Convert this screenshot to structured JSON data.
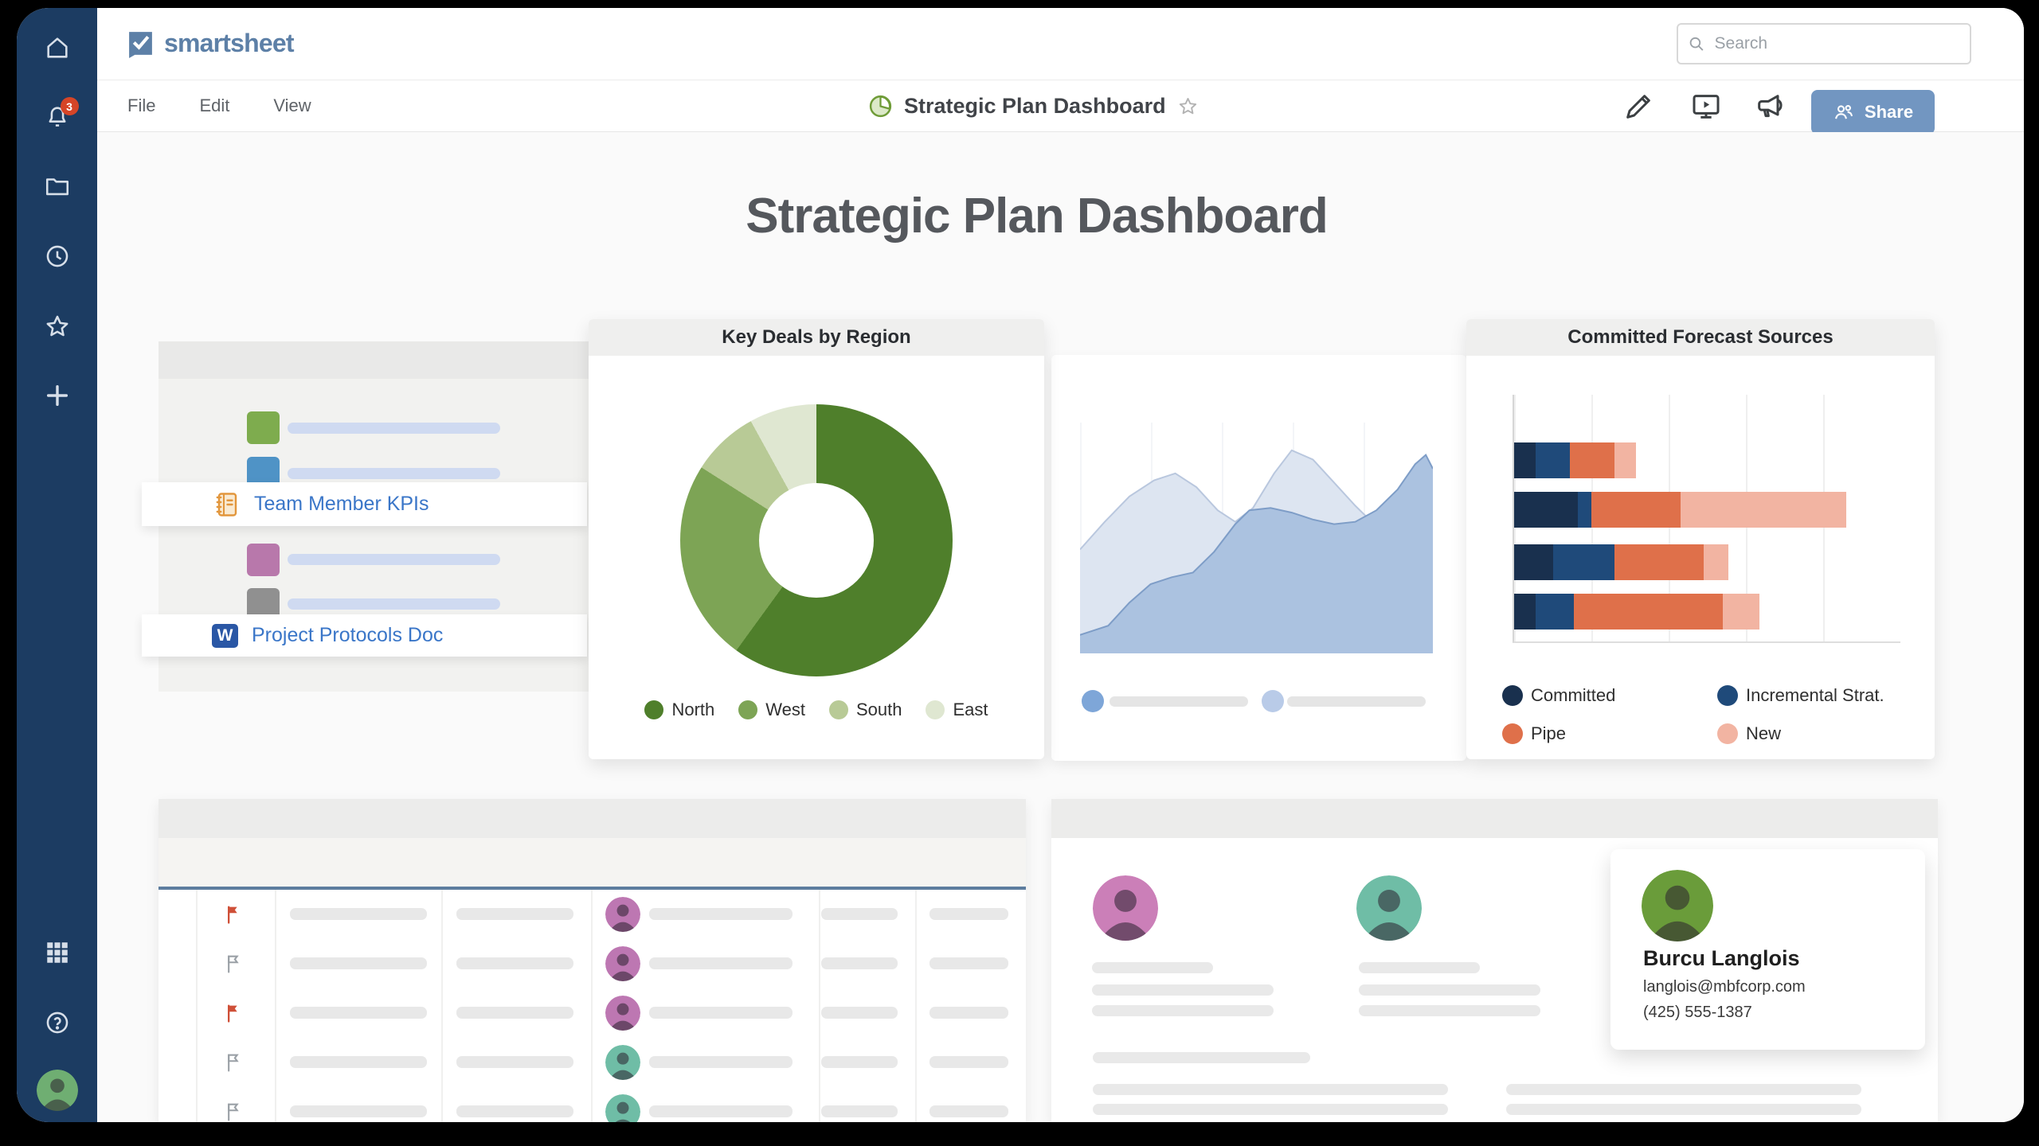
{
  "topbar": {
    "logo_text": "smartsheet",
    "search_placeholder": "Search"
  },
  "sidebar": {
    "notification_count": "3",
    "icons": [
      "home",
      "notifications",
      "folders",
      "recents",
      "favorites",
      "create",
      "apps",
      "help",
      "account"
    ]
  },
  "menubar": {
    "menus": [
      "File",
      "Edit",
      "View"
    ],
    "doc_title": "Strategic Plan Dashboard",
    "share_label": "Share",
    "action_icons": [
      "edit-pencil",
      "present",
      "announce"
    ]
  },
  "main": {
    "heading": "Strategic Plan Dashboard"
  },
  "left_list": {
    "skeleton_items": [
      {
        "swatch": "#7eac4e"
      },
      {
        "swatch": "#4f93c6"
      },
      {
        "swatch": "#b878ab"
      },
      {
        "swatch": "#909090"
      }
    ],
    "links": [
      {
        "label": "Team Member KPIs",
        "icon": "notebook-icon"
      },
      {
        "label": "Project Protocols Doc",
        "icon": "word-doc-icon"
      }
    ]
  },
  "chart_data": [
    {
      "id": "key-deals-by-region",
      "type": "pie",
      "donut": true,
      "title": "Key Deals by Region",
      "labels": [
        "North",
        "West",
        "South",
        "East"
      ],
      "values": [
        60,
        24,
        8,
        8
      ],
      "colors": [
        "#4f7f2b",
        "#7da455",
        "#b8ca96",
        "#dfe7d1"
      ],
      "legend_position": "bottom"
    },
    {
      "id": "trend-area",
      "type": "area",
      "title": "",
      "xlim": [
        0,
        100
      ],
      "ylim": [
        0,
        100
      ],
      "grid": "faint-vertical",
      "series": [
        {
          "name": "background-series",
          "fill": "#dde5f1",
          "stroke": "#b9c7de",
          "points": [
            [
              0,
              45
            ],
            [
              7,
              57
            ],
            [
              14,
              68
            ],
            [
              21,
              75
            ],
            [
              27,
              78
            ],
            [
              33,
              72
            ],
            [
              39,
              62
            ],
            [
              44,
              57
            ],
            [
              49,
              63
            ],
            [
              55,
              78
            ],
            [
              60,
              88
            ],
            [
              66,
              84
            ],
            [
              72,
              74
            ],
            [
              78,
              64
            ],
            [
              84,
              55
            ],
            [
              90,
              50
            ],
            [
              95,
              44
            ],
            [
              100,
              38
            ]
          ]
        },
        {
          "name": "foreground-series",
          "fill": "#abc2e0",
          "stroke": "#7e9dc7",
          "points": [
            [
              0,
              8
            ],
            [
              8,
              12
            ],
            [
              14,
              22
            ],
            [
              20,
              30
            ],
            [
              26,
              33
            ],
            [
              32,
              35
            ],
            [
              38,
              44
            ],
            [
              44,
              56
            ],
            [
              48,
              62
            ],
            [
              54,
              63
            ],
            [
              60,
              61
            ],
            [
              66,
              58
            ],
            [
              72,
              56
            ],
            [
              78,
              57
            ],
            [
              84,
              62
            ],
            [
              90,
              71
            ],
            [
              95,
              82
            ],
            [
              98,
              86
            ],
            [
              100,
              80
            ]
          ]
        }
      ]
    },
    {
      "id": "committed-forecast-sources",
      "type": "bar",
      "orientation": "horizontal",
      "stacked": true,
      "title": "Committed Forecast Sources",
      "categories": [
        "",
        "",
        "",
        ""
      ],
      "xlim": [
        0,
        100
      ],
      "legend_position": "bottom",
      "series": [
        {
          "name": "Committed",
          "color": "#19304e",
          "values": [
            5.5,
            16.5,
            10,
            5.5
          ]
        },
        {
          "name": "Incremental Strat.",
          "color": "#1f4a7a",
          "values": [
            9,
            3.5,
            16,
            10
          ]
        },
        {
          "name": "Pipe",
          "color": "#df704a",
          "values": [
            11.5,
            23,
            23,
            38.5
          ]
        },
        {
          "name": "New",
          "color": "#f2b4a2",
          "values": [
            5.5,
            43,
            6.5,
            9.5
          ]
        }
      ]
    }
  ],
  "kpi_table": {
    "rows": [
      {
        "flag": "red",
        "avatar": "purple"
      },
      {
        "flag": "gray",
        "avatar": "purple"
      },
      {
        "flag": "red",
        "avatar": "purple"
      },
      {
        "flag": "gray",
        "avatar": "teal"
      },
      {
        "flag": "gray",
        "avatar": "teal"
      }
    ]
  },
  "profiles": {
    "avatars": [
      {
        "color": "pink"
      },
      {
        "color": "teal"
      }
    ]
  },
  "contact_card": {
    "name": "Burcu Langlois",
    "email": "langlois@mbfcorp.com",
    "phone": "(425) 555-1387"
  },
  "colors": {
    "sidebar": "#1c3c62",
    "accent_share": "#7296c1",
    "logo": "#5d80a7",
    "link_blue": "#3a76c8",
    "flag_red": "#cf5038",
    "flag_gray": "#9aa0a6",
    "avatar_purple": "#bd77b2",
    "avatar_teal": "#6fbda6",
    "avatar_pink": "#cb7fb8",
    "avatar_green": "#6a9c3a",
    "slider_dot1": "#7ea6d8",
    "slider_dot2": "#b9cbe8",
    "table_blue_line": "#5d7d9f"
  }
}
